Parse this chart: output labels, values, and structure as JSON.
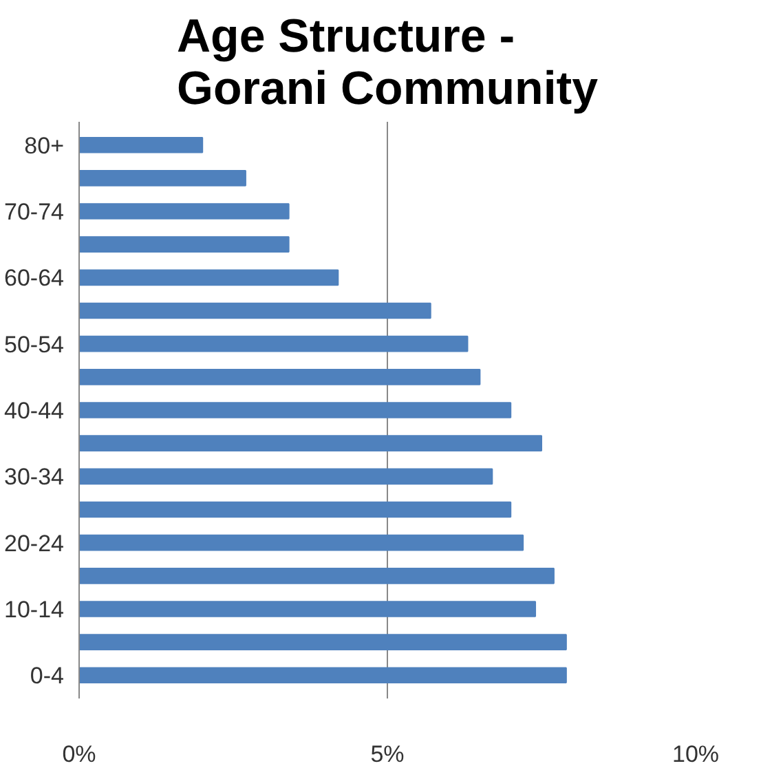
{
  "chart_data": {
    "type": "bar",
    "orientation": "horizontal",
    "title": "Age Structure -\nGorani Community",
    "categories": [
      "80+",
      null,
      "70-74",
      null,
      "60-64",
      null,
      "50-54",
      null,
      "40-44",
      null,
      "30-34",
      null,
      "20-24",
      null,
      "10-14",
      null,
      "0-4"
    ],
    "values": [
      2.0,
      2.7,
      3.4,
      3.4,
      4.2,
      5.7,
      6.3,
      6.5,
      7.0,
      7.5,
      6.7,
      7.0,
      7.2,
      7.7,
      7.4,
      7.9,
      7.9
    ],
    "color": "#4f81bd",
    "xlim": [
      0,
      10
    ],
    "xticks": [
      {
        "value": 0,
        "label": "0%"
      },
      {
        "value": 5,
        "label": "5%"
      },
      {
        "value": 10,
        "label": "10%"
      }
    ],
    "grid": "x"
  }
}
